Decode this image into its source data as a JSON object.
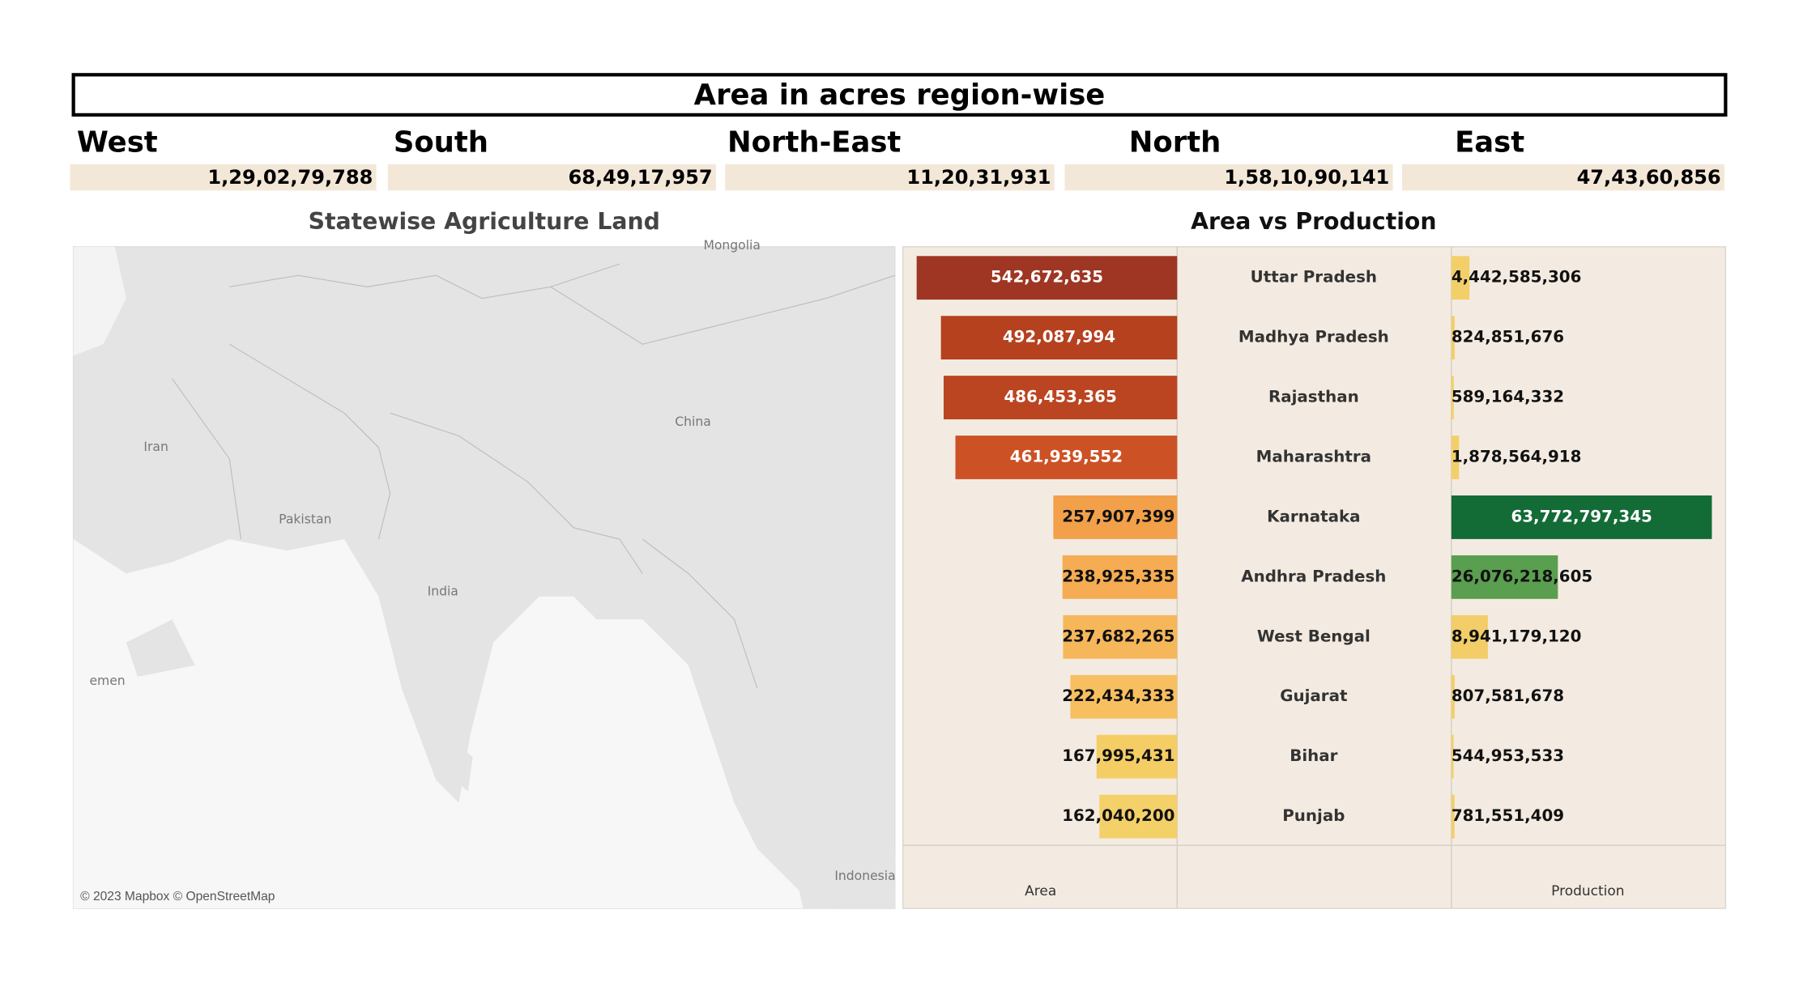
{
  "title": "Area in acres region-wise",
  "regions": [
    {
      "name": "West",
      "value": "1,29,02,79,788"
    },
    {
      "name": "South",
      "value": "68,49,17,957"
    },
    {
      "name": "North-East",
      "value": "11,20,31,931"
    },
    {
      "name": "North",
      "value": "1,58,10,90,141"
    },
    {
      "name": "East",
      "value": "47,43,60,856"
    }
  ],
  "map": {
    "title": "Statewise Agriculture Land",
    "labels": [
      "Iran",
      "Pakistan",
      "China",
      "India",
      "emen",
      "Indonesia",
      "Mongolia"
    ],
    "attribution": "© 2023 Mapbox © OpenStreetMap"
  },
  "chart_data": {
    "type": "bar",
    "title": "Area vs Production",
    "categories": [
      "Uttar Pradesh",
      "Madhya Pradesh",
      "Rajasthan",
      "Maharashtra",
      "Karnataka",
      "Andhra Pradesh",
      "West Bengal",
      "Gujarat",
      "Bihar",
      "Punjab"
    ],
    "series": [
      {
        "name": "Area",
        "values": [
          542672635,
          492087994,
          486453365,
          461939552,
          257907399,
          238925335,
          237682265,
          222434333,
          167995431,
          162040200
        ],
        "value_labels": [
          "542,672,635",
          "492,087,994",
          "486,453,365",
          "461,939,552",
          "257,907,399",
          "238,925,335",
          "237,682,265",
          "222,434,333",
          "167,995,431",
          "162,040,200"
        ],
        "colors": [
          "#9e3623",
          "#b5411f",
          "#bb4521",
          "#cc5225",
          "#f2a04a",
          "#f5ac52",
          "#f6b75b",
          "#f8bf60",
          "#f4cd65",
          "#f4d069"
        ]
      },
      {
        "name": "Production",
        "values": [
          4442585306,
          824851676,
          589164332,
          1878564918,
          63772797345,
          26076218605,
          8941179120,
          807581678,
          544953533,
          781551409
        ],
        "value_labels": [
          "4,442,585,306",
          "824,851,676",
          "589,164,332",
          "1,878,564,918",
          "63,772,797,345",
          "26,076,218,605",
          "8,941,179,120",
          "807,581,678",
          "544,953,533",
          "781,551,409"
        ],
        "colors": [
          "#f3cf6a",
          "#f3cf6a",
          "#f3cf6a",
          "#f3cf6a",
          "#136b36",
          "#5a9e4f",
          "#f2cd68",
          "#f3cf6a",
          "#f3cf6a",
          "#f3cf6a"
        ]
      }
    ]
  }
}
